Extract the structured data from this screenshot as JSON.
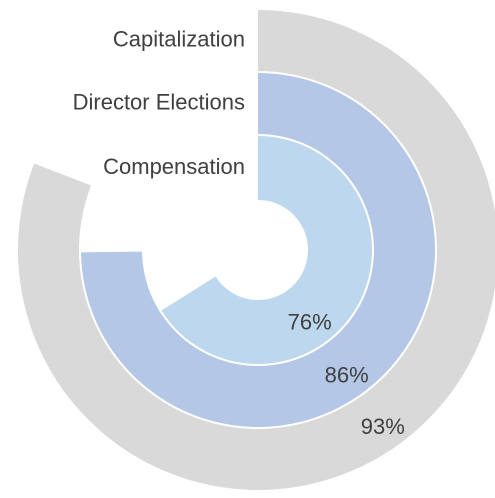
{
  "chart_data": {
    "type": "radial-bar",
    "categories": [
      "Capitalization",
      "Director Elections",
      "Compensation"
    ],
    "values": [
      93,
      86,
      76
    ],
    "value_labels": [
      "93%",
      "86%",
      "76%"
    ],
    "colors": [
      "#d9d9d9",
      "#b4c7e7",
      "#bdd7ee"
    ],
    "ylim": [
      0,
      115
    ]
  }
}
